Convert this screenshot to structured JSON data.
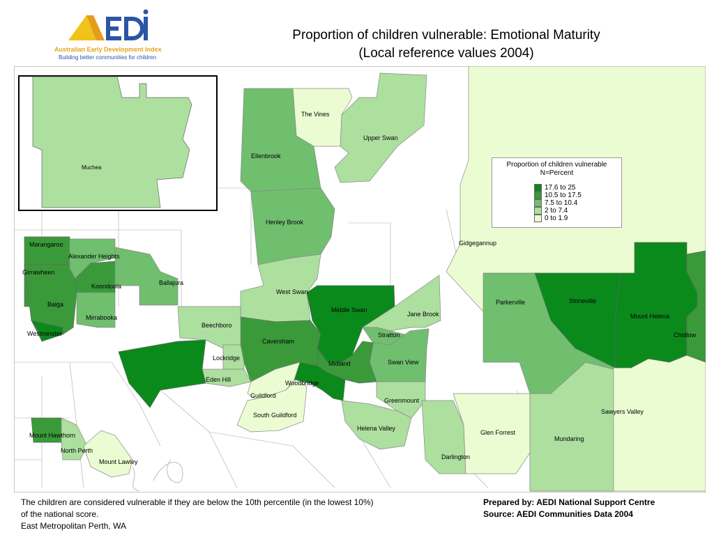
{
  "logo": {
    "mark": "AEDI",
    "line1": "Australian Early Development Index",
    "line2": "Building better communities for children"
  },
  "title": {
    "line1": "Proportion of children vulnerable: Emotional Maturity",
    "line2": "(Local reference values 2004)"
  },
  "legend": {
    "title": "Proportion of children vulnerable",
    "subtitle": "N=Percent",
    "items": [
      {
        "label": "17.6 to 25",
        "color": "#0b8a1c"
      },
      {
        "label": "10.5 to 17.5",
        "color": "#3a9a3a"
      },
      {
        "label": "7.5 to 10.4",
        "color": "#6fbf6e"
      },
      {
        "label": "2    to   7.4",
        "color": "#addf9f"
      },
      {
        "label": "0    to   1.9",
        "color": "#ecfcd2"
      }
    ]
  },
  "areas": {
    "muchea": "Muchea",
    "the_vines": "The Vines",
    "upper_swan": "Upper Swan",
    "ellenbrook": "Ellenbrook",
    "henley_brook": "Henley Brook",
    "gidgegannup": "Gidgegannup",
    "marangaroo": "Marangaroo",
    "alexander_heights": "Alexander Heights",
    "girrawheen": "Girrawheen",
    "koondoola": "Koondoola",
    "ballajura": "Ballajura",
    "balga": "Balga",
    "mirrabooka": "Mirrabooka",
    "westminster": "Westminster",
    "west_swan": "West Swan",
    "middle_swan": "Middle Swan",
    "jane_brook": "Jane Brook",
    "parkerville": "Parkerville",
    "stoneville": "Stoneville",
    "mount_helena": "Mount Helena",
    "chidlow": "Chidlow",
    "beechboro": "Beechboro",
    "caversham": "Caversham",
    "stratton": "Stratton",
    "lockridge": "Lockridge",
    "midland": "Midland",
    "swan_view": "Swan View",
    "eden_hill": "Eden Hill",
    "woodbridge": "Woodbridge",
    "guildford": "Guildford",
    "greenmount": "Greenmount",
    "south_guildford": "South Guildford",
    "sawyers_valley": "Sawyers Valley",
    "helena_valley": "Helena Valley",
    "glen_forrest": "Glen Forrest",
    "mount_hawthorn": "Mount Hawthorn",
    "mundaring": "Mundaring",
    "north_perth": "North Perth",
    "darlington": "Darlington",
    "mount_lawley": "Mount Lawley"
  },
  "footer": {
    "note_line1": "The children are considered vulnerable if they are below the 10th percentile (in the lowest 10%)",
    "note_line2": "of the national score.",
    "note_line3": "East Metropolitan Perth, WA",
    "prepared_by": "Prepared by: AEDI National Support Centre",
    "source": "Source: AEDI Communities Data 2004"
  }
}
